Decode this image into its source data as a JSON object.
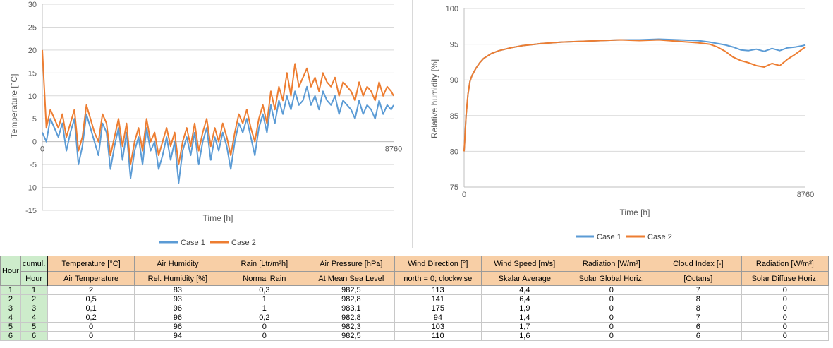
{
  "chart_data": [
    {
      "type": "line",
      "xlabel": "Time [h]",
      "ylabel": "Temperature [°C]",
      "xlim": [
        0,
        8760
      ],
      "ylim": [
        -15,
        30
      ],
      "yticks": [
        30,
        25,
        20,
        15,
        10,
        5,
        0,
        -5,
        -10,
        -15
      ],
      "xticks": [
        "0",
        "8760"
      ],
      "series": [
        {
          "name": "Case 1",
          "color": "#5b9bd5",
          "x": [
            0,
            100,
            200,
            300,
            400,
            500,
            600,
            700,
            800,
            900,
            1000,
            1100,
            1200,
            1300,
            1400,
            1500,
            1600,
            1700,
            1800,
            1900,
            2000,
            2100,
            2200,
            2300,
            2400,
            2500,
            2600,
            2700,
            2800,
            2900,
            3000,
            3100,
            3200,
            3300,
            3400,
            3500,
            3600,
            3700,
            3800,
            3900,
            4000,
            4100,
            4200,
            4300,
            4400,
            4500,
            4600,
            4700,
            4800,
            4900,
            5000,
            5100,
            5200,
            5300,
            5400,
            5500,
            5600,
            5700,
            5800,
            5900,
            6000,
            6100,
            6200,
            6300,
            6400,
            6500,
            6600,
            6700,
            6800,
            6900,
            7000,
            7100,
            7200,
            7300,
            7400,
            7500,
            7600,
            7700,
            7800,
            7900,
            8000,
            8100,
            8200,
            8300,
            8400,
            8500,
            8600,
            8700,
            8760
          ],
          "y": [
            2,
            0,
            5,
            3,
            1,
            4,
            -2,
            2,
            5,
            -5,
            -1,
            6,
            3,
            0,
            -3,
            4,
            2,
            -6,
            -1,
            3,
            -4,
            2,
            -8,
            -2,
            1,
            -5,
            3,
            -2,
            0,
            -6,
            -3,
            1,
            -4,
            0,
            -9,
            -2,
            1,
            -3,
            2,
            -5,
            0,
            3,
            -4,
            1,
            -2,
            2,
            -1,
            -6,
            0,
            4,
            2,
            5,
            1,
            -3,
            3,
            6,
            2,
            8,
            4,
            9,
            6,
            10,
            7,
            11,
            8,
            9,
            12,
            8,
            10,
            7,
            11,
            9,
            8,
            10,
            6,
            9,
            8,
            7,
            5,
            9,
            6,
            8,
            7,
            5,
            9,
            6,
            8,
            7,
            8
          ]
        },
        {
          "name": "Case 2",
          "color": "#ed7d31",
          "x": [
            0,
            100,
            200,
            300,
            400,
            500,
            600,
            700,
            800,
            900,
            1000,
            1100,
            1200,
            1300,
            1400,
            1500,
            1600,
            1700,
            1800,
            1900,
            2000,
            2100,
            2200,
            2300,
            2400,
            2500,
            2600,
            2700,
            2800,
            2900,
            3000,
            3100,
            3200,
            3300,
            3400,
            3500,
            3600,
            3700,
            3800,
            3900,
            4000,
            4100,
            4200,
            4300,
            4400,
            4500,
            4600,
            4700,
            4800,
            4900,
            5000,
            5100,
            5200,
            5300,
            5400,
            5500,
            5600,
            5700,
            5800,
            5900,
            6000,
            6100,
            6200,
            6300,
            6400,
            6500,
            6600,
            6700,
            6800,
            6900,
            7000,
            7100,
            7200,
            7300,
            7400,
            7500,
            7600,
            7700,
            7800,
            7900,
            8000,
            8100,
            8200,
            8300,
            8400,
            8500,
            8600,
            8700,
            8760
          ],
          "y": [
            20,
            3,
            7,
            5,
            3,
            6,
            1,
            4,
            7,
            -2,
            1,
            8,
            5,
            2,
            0,
            6,
            4,
            -3,
            1,
            5,
            -1,
            4,
            -5,
            0,
            3,
            -2,
            5,
            0,
            2,
            -3,
            0,
            3,
            -1,
            2,
            -5,
            0,
            3,
            -1,
            4,
            -2,
            2,
            5,
            -1,
            3,
            0,
            4,
            1,
            -3,
            2,
            6,
            4,
            7,
            3,
            0,
            5,
            8,
            4,
            11,
            7,
            12,
            9,
            15,
            10,
            17,
            12,
            14,
            16,
            12,
            14,
            11,
            15,
            13,
            12,
            14,
            10,
            13,
            12,
            11,
            9,
            13,
            10,
            12,
            11,
            9,
            13,
            10,
            12,
            11,
            10
          ]
        }
      ],
      "legend": "bottom"
    },
    {
      "type": "line",
      "xlabel": "Time [h]",
      "ylabel": "Relative humidity [%]",
      "xlim": [
        0,
        8760
      ],
      "ylim": [
        75,
        100
      ],
      "yticks": [
        100,
        95,
        90,
        85,
        80,
        75
      ],
      "xticks": [
        "0",
        "8760"
      ],
      "series": [
        {
          "name": "Case 1",
          "color": "#5b9bd5",
          "x": [
            0,
            50,
            100,
            150,
            200,
            300,
            400,
            500,
            700,
            900,
            1200,
            1500,
            2000,
            2500,
            3000,
            3500,
            4000,
            4500,
            5000,
            5500,
            6000,
            6300,
            6500,
            6700,
            6900,
            7100,
            7300,
            7500,
            7700,
            7900,
            8100,
            8300,
            8500,
            8700,
            8760
          ],
          "y": [
            80,
            85,
            88,
            89.8,
            90.6,
            91.6,
            92.4,
            93,
            93.7,
            94.1,
            94.5,
            94.8,
            95.1,
            95.3,
            95.4,
            95.5,
            95.6,
            95.6,
            95.7,
            95.6,
            95.5,
            95.3,
            95.1,
            94.9,
            94.6,
            94.2,
            94.1,
            94.3,
            94.0,
            94.4,
            94.1,
            94.5,
            94.6,
            94.8,
            94.9
          ]
        },
        {
          "name": "Case 2",
          "color": "#ed7d31",
          "x": [
            0,
            50,
            100,
            150,
            200,
            300,
            400,
            500,
            700,
            900,
            1200,
            1500,
            2000,
            2500,
            3000,
            3500,
            4000,
            4500,
            5000,
            5500,
            6000,
            6300,
            6500,
            6700,
            6900,
            7100,
            7300,
            7500,
            7700,
            7900,
            8100,
            8300,
            8500,
            8700,
            8760
          ],
          "y": [
            80,
            85,
            88,
            89.8,
            90.6,
            91.6,
            92.4,
            93,
            93.7,
            94.1,
            94.5,
            94.8,
            95.1,
            95.3,
            95.4,
            95.5,
            95.6,
            95.5,
            95.6,
            95.4,
            95.2,
            95.0,
            94.6,
            94.0,
            93.2,
            92.7,
            92.4,
            92.0,
            91.8,
            92.3,
            92.0,
            92.9,
            93.6,
            94.4,
            94.6
          ]
        }
      ],
      "legend": "bottom"
    }
  ],
  "table": {
    "hour_label": "Hour",
    "cumul_label": "cumul.",
    "cumul_hour_label": "Hour",
    "header_top": [
      "Temperature [°C]",
      "Air Humidity",
      "Rain [Ltr/m²h]",
      "Air Pressure [hPa]",
      "Wind Direction [°]",
      "Wind Speed [m/s]",
      "Radiation [W/m²]",
      "Cloud Index [-]",
      "Radiation [W/m²]"
    ],
    "header_sub": [
      "Air Temperature",
      "Rel. Humidity [%]",
      "Normal Rain",
      "At Mean Sea Level",
      "north = 0; clockwise",
      "Skalar Average",
      "Solar Global Horiz.",
      "[Octans]",
      "Solar Diffuse Horiz."
    ],
    "rows": [
      {
        "hour": "1",
        "cumul": "1",
        "values": [
          "2",
          "83",
          "0,3",
          "982,5",
          "113",
          "4,4",
          "0",
          "7",
          "0"
        ]
      },
      {
        "hour": "2",
        "cumul": "2",
        "values": [
          "0,5",
          "93",
          "1",
          "982,8",
          "141",
          "6,4",
          "0",
          "8",
          "0"
        ]
      },
      {
        "hour": "3",
        "cumul": "3",
        "values": [
          "0,1",
          "96",
          "1",
          "983,1",
          "175",
          "1,9",
          "0",
          "8",
          "0"
        ]
      },
      {
        "hour": "4",
        "cumul": "4",
        "values": [
          "0,2",
          "96",
          "0,2",
          "982,8",
          "94",
          "1,4",
          "0",
          "7",
          "0"
        ]
      },
      {
        "hour": "5",
        "cumul": "5",
        "values": [
          "0",
          "96",
          "0",
          "982,3",
          "103",
          "1,7",
          "0",
          "6",
          "0"
        ]
      },
      {
        "hour": "6",
        "cumul": "6",
        "values": [
          "0",
          "94",
          "0",
          "982,5",
          "110",
          "1,6",
          "0",
          "6",
          "0"
        ]
      }
    ]
  }
}
